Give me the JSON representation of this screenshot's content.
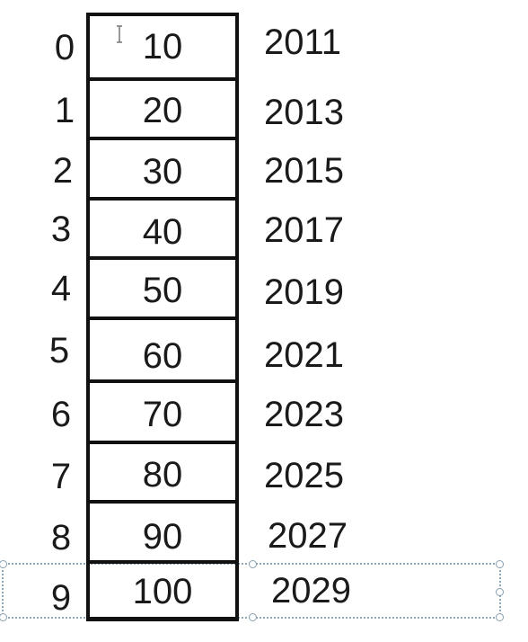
{
  "array": {
    "indices": [
      "0",
      "1",
      "2",
      "3",
      "4",
      "5",
      "6",
      "7",
      "8",
      "9"
    ],
    "values": [
      "10",
      "20",
      "30",
      "40",
      "50",
      "60",
      "70",
      "80",
      "90",
      "100"
    ],
    "addresses": [
      "2011",
      "2013",
      "2015",
      "2017",
      "2019",
      "2021",
      "2023",
      "2025",
      "2027",
      "2029"
    ]
  },
  "icons": {
    "cursor": "text-cursor-icon",
    "selection": "selection-frame"
  },
  "colors": {
    "border": "#111111",
    "selection": "#8da7b8"
  }
}
